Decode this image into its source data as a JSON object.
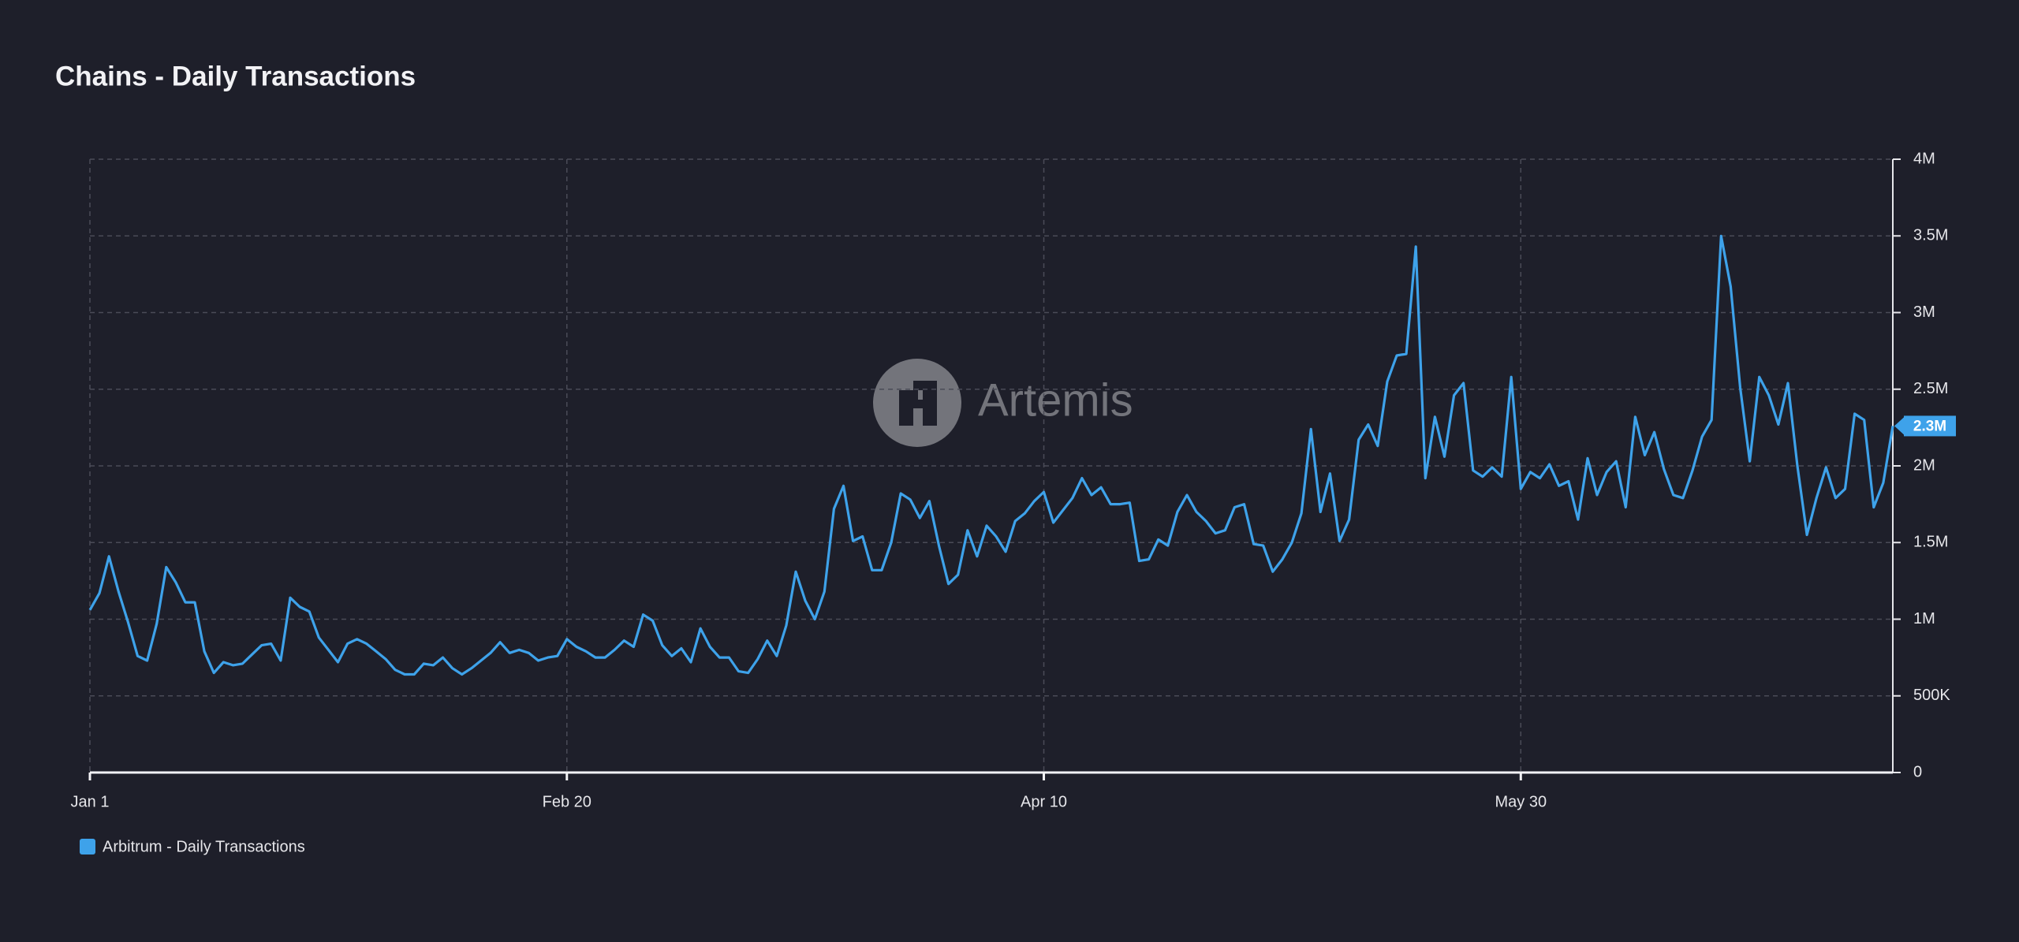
{
  "chart_data": {
    "type": "line",
    "title": "Chains - Daily Transactions",
    "watermark": "Artemis",
    "categories": [
      "Jan 1",
      null,
      null,
      null,
      null,
      null,
      null,
      null,
      null,
      null,
      null,
      null,
      null,
      null,
      null,
      null,
      null,
      null,
      null,
      null,
      null,
      null,
      null,
      null,
      null,
      null,
      null,
      null,
      null,
      null,
      null,
      null,
      null,
      null,
      null,
      null,
      null,
      null,
      null,
      null,
      null,
      null,
      null,
      null,
      null,
      null,
      null,
      null,
      null,
      null,
      "Feb 20",
      null,
      null,
      null,
      null,
      null,
      null,
      null,
      null,
      null,
      null,
      null,
      null,
      null,
      null,
      null,
      null,
      null,
      null,
      null,
      null,
      null,
      null,
      null,
      null,
      null,
      null,
      null,
      null,
      null,
      null,
      null,
      null,
      null,
      null,
      null,
      null,
      null,
      null,
      null,
      null,
      null,
      null,
      null,
      null,
      null,
      null,
      null,
      null,
      null,
      "Apr 10",
      null,
      null,
      null,
      null,
      null,
      null,
      null,
      null,
      null,
      null,
      null,
      null,
      null,
      null,
      null,
      null,
      null,
      null,
      null,
      null,
      null,
      null,
      null,
      null,
      null,
      null,
      null,
      null,
      null,
      null,
      null,
      null,
      null,
      null,
      null,
      null,
      null,
      null,
      null,
      null,
      null,
      null,
      null,
      null,
      null,
      null,
      null,
      null,
      null,
      "May 30",
      null,
      null,
      null,
      null,
      null,
      null,
      null,
      null,
      null,
      null,
      null,
      null,
      null,
      null,
      null,
      null,
      null,
      null,
      null,
      null,
      null,
      null,
      null,
      null,
      null,
      null,
      null,
      null,
      null,
      null,
      null,
      null,
      null,
      null,
      null,
      null,
      null,
      null,
      null
    ],
    "series": [
      {
        "name": "Arbitrum - Daily Transactions",
        "color": "#3ea2ea",
        "values": [
          1060000,
          1170000,
          1410000,
          1180000,
          980000,
          760000,
          730000,
          970000,
          1340000,
          1240000,
          1110000,
          1110000,
          790000,
          650000,
          720000,
          700000,
          710000,
          770000,
          830000,
          840000,
          730000,
          1140000,
          1080000,
          1050000,
          880000,
          800000,
          720000,
          840000,
          870000,
          840000,
          790000,
          740000,
          670000,
          640000,
          640000,
          710000,
          700000,
          750000,
          680000,
          640000,
          680000,
          730000,
          780000,
          850000,
          780000,
          800000,
          780000,
          730000,
          750000,
          760000,
          870000,
          820000,
          790000,
          750000,
          750000,
          800000,
          860000,
          820000,
          1030000,
          990000,
          830000,
          760000,
          810000,
          720000,
          940000,
          820000,
          750000,
          750000,
          660000,
          650000,
          740000,
          860000,
          760000,
          960000,
          1310000,
          1120000,
          1000000,
          1180000,
          1720000,
          1870000,
          1510000,
          1540000,
          1320000,
          1320000,
          1500000,
          1820000,
          1780000,
          1660000,
          1770000,
          1480000,
          1230000,
          1290000,
          1580000,
          1410000,
          1610000,
          1540000,
          1440000,
          1640000,
          1690000,
          1770000,
          1830000,
          1630000,
          1710000,
          1790000,
          1920000,
          1810000,
          1860000,
          1750000,
          1750000,
          1760000,
          1380000,
          1390000,
          1520000,
          1480000,
          1700000,
          1810000,
          1700000,
          1640000,
          1560000,
          1580000,
          1730000,
          1750000,
          1490000,
          1480000,
          1310000,
          1390000,
          1500000,
          1690000,
          2240000,
          1700000,
          1950000,
          1510000,
          1650000,
          2170000,
          2270000,
          2130000,
          2550000,
          2720000,
          2730000,
          3430000,
          1920000,
          2320000,
          2060000,
          2460000,
          2540000,
          1970000,
          1930000,
          1990000,
          1930000,
          2580000,
          1850000,
          1960000,
          1920000,
          2010000,
          1870000,
          1900000,
          1650000,
          2050000,
          1810000,
          1960000,
          2030000,
          1730000,
          2320000,
          2070000,
          2220000,
          1980000,
          1810000,
          1790000,
          1970000,
          2190000,
          2300000,
          3500000,
          3170000,
          2510000,
          2030000,
          2580000,
          2460000,
          2270000,
          2540000,
          2000000,
          1550000,
          1790000,
          1990000,
          1790000,
          1850000,
          2340000,
          2300000,
          1730000,
          1890000,
          2260000
        ],
        "value_labels": [
          null,
          null,
          null,
          null,
          null,
          null,
          null,
          null,
          null,
          null,
          null,
          null,
          null,
          null,
          null,
          null,
          null,
          null,
          null,
          null,
          null,
          null,
          null,
          null,
          null,
          null,
          null,
          null,
          null,
          null,
          null,
          null,
          null,
          null,
          null,
          null,
          null,
          null,
          null,
          null,
          null,
          null,
          null,
          null,
          null,
          null,
          null,
          null,
          null,
          null,
          null,
          null,
          null,
          null,
          null,
          null,
          null,
          null,
          null,
          null,
          null,
          null,
          null,
          null,
          null,
          null,
          null,
          null,
          null,
          null,
          null,
          null,
          null,
          null,
          null,
          null,
          null,
          null,
          null,
          null,
          null,
          null,
          null,
          null,
          null,
          null,
          null,
          null,
          null,
          null,
          null,
          null,
          null,
          null,
          null,
          null,
          null,
          null,
          null,
          null,
          null,
          null,
          null,
          null,
          null,
          null,
          null,
          null,
          null,
          null,
          null,
          null,
          null,
          null,
          null,
          null,
          null,
          null,
          null,
          null,
          null,
          null,
          null,
          null,
          null,
          null,
          null,
          null,
          null,
          null,
          null,
          null,
          null,
          null,
          null,
          null,
          null,
          null,
          null,
          null,
          null,
          null,
          null,
          null,
          null,
          null,
          null,
          null,
          null,
          null,
          null,
          null,
          null,
          null,
          null,
          null,
          null,
          null,
          null,
          null,
          null,
          null,
          null,
          null,
          null,
          null,
          null,
          null,
          null,
          null,
          null,
          null,
          null,
          null,
          null,
          null,
          null,
          null,
          null,
          null,
          null,
          null,
          null,
          null,
          null,
          null,
          null,
          null,
          null,
          "2.3M"
        ]
      }
    ],
    "ylim": [
      0,
      4000000
    ],
    "yticks": [
      0,
      {
        "value": 500000,
        "label": "500K"
      },
      {
        "value": 1000000,
        "label": "1M"
      },
      {
        "value": 1500000,
        "label": "1.5M"
      },
      {
        "value": 2000000,
        "label": "2M"
      },
      {
        "value": 2500000,
        "label": "2.5M"
      },
      {
        "value": 3000000,
        "label": "3M"
      },
      {
        "value": 3500000,
        "label": "3.5M"
      },
      {
        "value": 4000000,
        "label": "4M"
      }
    ],
    "grid": true
  }
}
